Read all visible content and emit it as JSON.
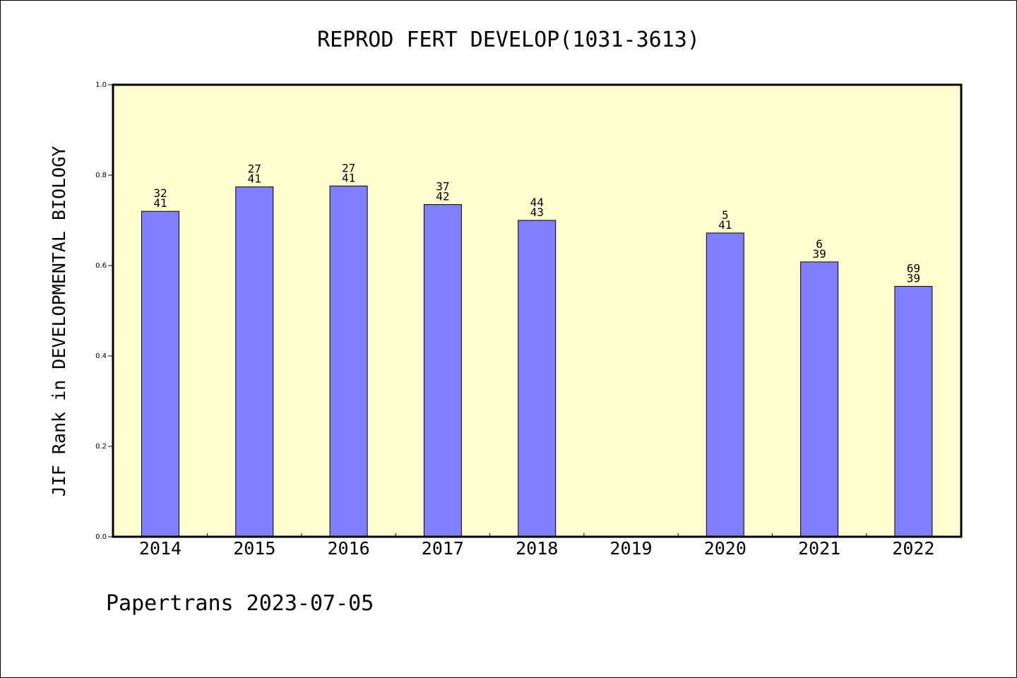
{
  "chart_data": {
    "type": "bar",
    "title": "REPROD FERT DEVELOP(1031-3613)",
    "ylabel": "JIF Rank in DEVELOPMENTAL BIOLOGY",
    "xlabel": "",
    "ylim": [
      0,
      1.0
    ],
    "yticks": [
      "0.0",
      "0.2",
      "0.4",
      "0.6",
      "0.8",
      "1.0"
    ],
    "categories": [
      "2014",
      "2015",
      "2016",
      "2017",
      "2018",
      "2019",
      "2020",
      "2021",
      "2022"
    ],
    "values": [
      0.72,
      0.774,
      0.776,
      0.735,
      0.7,
      null,
      0.672,
      0.608,
      0.554
    ],
    "labels_top": [
      "32",
      "27",
      "27",
      "37",
      "44",
      "",
      "5",
      "6",
      "69"
    ],
    "labels_bottom": [
      "41",
      "41",
      "41",
      "42",
      "43",
      "",
      "41",
      "39",
      "39"
    ],
    "colors": {
      "plot_bg": "#ffffd0",
      "bar": "#8080ff"
    },
    "grid": false,
    "footer": "Papertrans 2023-07-05"
  }
}
